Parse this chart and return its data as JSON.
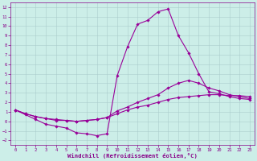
{
  "xlabel": "Windchill (Refroidissement éolien,°C)",
  "bg_color": "#cceee8",
  "grid_color": "#aacccc",
  "line_color": "#990099",
  "xlim": [
    -0.5,
    23.5
  ],
  "ylim": [
    -2.5,
    12.5
  ],
  "xticks": [
    0,
    1,
    2,
    3,
    4,
    5,
    6,
    7,
    8,
    9,
    10,
    11,
    12,
    13,
    14,
    15,
    16,
    17,
    18,
    19,
    20,
    21,
    22,
    23
  ],
  "yticks": [
    -2,
    -1,
    0,
    1,
    2,
    3,
    4,
    5,
    6,
    7,
    8,
    9,
    10,
    11,
    12
  ],
  "line1_x": [
    0,
    1,
    2,
    3,
    4,
    5,
    6,
    7,
    8,
    9,
    10,
    11,
    12,
    13,
    14,
    15,
    16,
    17,
    18,
    19,
    20,
    21,
    22,
    23
  ],
  "line1_y": [
    1.2,
    0.7,
    0.2,
    -0.3,
    -0.5,
    -0.7,
    -1.2,
    -1.3,
    -1.5,
    -1.3,
    4.8,
    7.8,
    10.2,
    10.6,
    11.5,
    11.8,
    9.0,
    7.2,
    5.0,
    3.1,
    2.9,
    2.6,
    2.4,
    2.3
  ],
  "line2_x": [
    0,
    1,
    2,
    3,
    4,
    5,
    6,
    7,
    8,
    9,
    10,
    11,
    12,
    13,
    14,
    15,
    16,
    17,
    18,
    19,
    20,
    21,
    22,
    23
  ],
  "line2_y": [
    1.2,
    0.8,
    0.5,
    0.3,
    0.2,
    0.1,
    0.0,
    0.1,
    0.2,
    0.4,
    1.1,
    1.5,
    2.0,
    2.4,
    2.8,
    3.5,
    4.0,
    4.3,
    4.0,
    3.5,
    3.2,
    2.8,
    2.6,
    2.4
  ],
  "line3_x": [
    0,
    1,
    2,
    3,
    4,
    5,
    6,
    7,
    8,
    9,
    10,
    11,
    12,
    13,
    14,
    15,
    16,
    17,
    18,
    19,
    20,
    21,
    22,
    23
  ],
  "line3_y": [
    1.2,
    0.8,
    0.5,
    0.3,
    0.1,
    0.1,
    0.0,
    0.1,
    0.2,
    0.4,
    0.8,
    1.2,
    1.5,
    1.7,
    2.0,
    2.3,
    2.5,
    2.6,
    2.7,
    2.8,
    2.8,
    2.7,
    2.7,
    2.6
  ],
  "tick_color": "#880088",
  "label_color": "#880088",
  "tick_fontsize": 4.0,
  "xlabel_fontsize": 5.2
}
